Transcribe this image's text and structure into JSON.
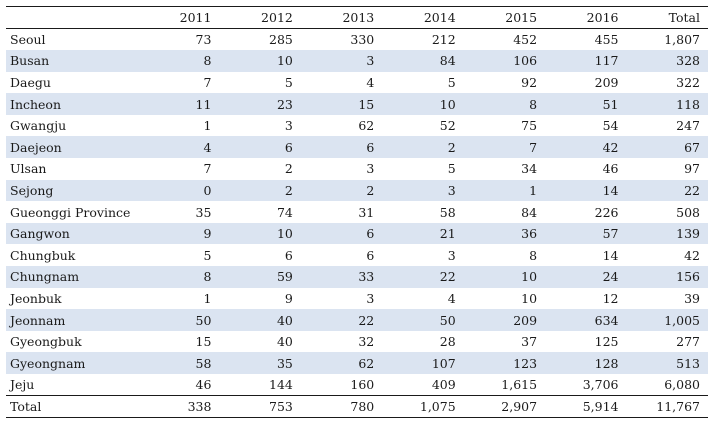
{
  "table": {
    "headers": [
      "",
      "2011",
      "2012",
      "2013",
      "2014",
      "2015",
      "2016",
      "Total"
    ],
    "rows": [
      {
        "region": "Seoul",
        "values": [
          "73",
          "285",
          "330",
          "212",
          "452",
          "455",
          "1,807"
        ]
      },
      {
        "region": "Busan",
        "values": [
          "8",
          "10",
          "3",
          "84",
          "106",
          "117",
          "328"
        ]
      },
      {
        "region": "Daegu",
        "values": [
          "7",
          "5",
          "4",
          "5",
          "92",
          "209",
          "322"
        ]
      },
      {
        "region": "Incheon",
        "values": [
          "11",
          "23",
          "15",
          "10",
          "8",
          "51",
          "118"
        ]
      },
      {
        "region": "Gwangju",
        "values": [
          "1",
          "3",
          "62",
          "52",
          "75",
          "54",
          "247"
        ]
      },
      {
        "region": "Daejeon",
        "values": [
          "4",
          "6",
          "6",
          "2",
          "7",
          "42",
          "67"
        ]
      },
      {
        "region": "Ulsan",
        "values": [
          "7",
          "2",
          "3",
          "5",
          "34",
          "46",
          "97"
        ]
      },
      {
        "region": "Sejong",
        "values": [
          "0",
          "2",
          "2",
          "3",
          "1",
          "14",
          "22"
        ]
      },
      {
        "region": "Gueonggi Province",
        "values": [
          "35",
          "74",
          "31",
          "58",
          "84",
          "226",
          "508"
        ]
      },
      {
        "region": "Gangwon",
        "values": [
          "9",
          "10",
          "6",
          "21",
          "36",
          "57",
          "139"
        ]
      },
      {
        "region": "Chungbuk",
        "values": [
          "5",
          "6",
          "6",
          "3",
          "8",
          "14",
          "42"
        ]
      },
      {
        "region": "Chungnam",
        "values": [
          "8",
          "59",
          "33",
          "22",
          "10",
          "24",
          "156"
        ]
      },
      {
        "region": "Jeonbuk",
        "values": [
          "1",
          "9",
          "3",
          "4",
          "10",
          "12",
          "39"
        ]
      },
      {
        "region": "Jeonnam",
        "values": [
          "50",
          "40",
          "22",
          "50",
          "209",
          "634",
          "1,005"
        ]
      },
      {
        "region": "Gyeongbuk",
        "values": [
          "15",
          "40",
          "32",
          "28",
          "37",
          "125",
          "277"
        ]
      },
      {
        "region": "Gyeongnam",
        "values": [
          "58",
          "35",
          "62",
          "107",
          "123",
          "128",
          "513"
        ]
      },
      {
        "region": "Jeju",
        "values": [
          "46",
          "144",
          "160",
          "409",
          "1,615",
          "3,706",
          "6,080"
        ]
      },
      {
        "region": "Total",
        "values": [
          "338",
          "753",
          "780",
          "1,075",
          "2,907",
          "5,914",
          "11,767"
        ]
      }
    ]
  },
  "colors": {
    "shade": "#dbe4f1",
    "rule": "#1a1a1a",
    "text": "#1a1a1a"
  }
}
